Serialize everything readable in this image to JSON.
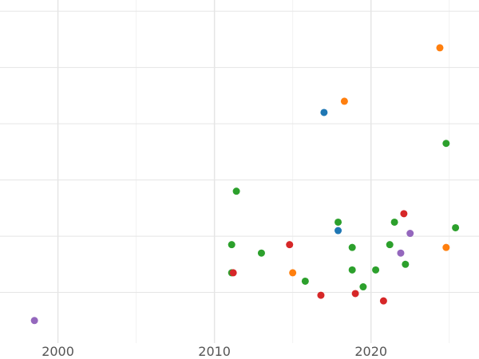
{
  "chart_data": {
    "type": "scatter",
    "title": "",
    "xlabel": "",
    "ylabel": "",
    "xlim": [
      1996.3,
      2026.9
    ],
    "ylim": [
      -0.4,
      5.7
    ],
    "grid": true,
    "x_ticks": [
      2000,
      2010,
      2020
    ],
    "x_tick_labels": [
      "2000",
      "2010",
      "2020"
    ],
    "y_grid_values": [
      0.5,
      1.5,
      2.5,
      3.5,
      4.5,
      5.5
    ],
    "series": [
      {
        "color": "#1f77b4",
        "points": [
          {
            "x": 2017.0,
            "y": 3.7
          },
          {
            "x": 2017.9,
            "y": 1.6
          }
        ]
      },
      {
        "color": "#ff7f0e",
        "points": [
          {
            "x": 2024.4,
            "y": 4.85
          },
          {
            "x": 2018.3,
            "y": 3.9
          },
          {
            "x": 2015.0,
            "y": 0.85
          },
          {
            "x": 2024.8,
            "y": 1.3
          }
        ]
      },
      {
        "color": "#2ca02c",
        "points": [
          {
            "x": 2024.8,
            "y": 3.15
          },
          {
            "x": 2011.4,
            "y": 2.3
          },
          {
            "x": 2017.9,
            "y": 1.75
          },
          {
            "x": 2021.5,
            "y": 1.75
          },
          {
            "x": 2025.4,
            "y": 1.65
          },
          {
            "x": 2011.1,
            "y": 1.35
          },
          {
            "x": 2013.0,
            "y": 1.2
          },
          {
            "x": 2018.8,
            "y": 1.3
          },
          {
            "x": 2021.2,
            "y": 1.35
          },
          {
            "x": 2022.2,
            "y": 1.0
          },
          {
            "x": 2018.8,
            "y": 0.9
          },
          {
            "x": 2020.3,
            "y": 0.9
          },
          {
            "x": 2011.1,
            "y": 0.85
          },
          {
            "x": 2015.8,
            "y": 0.7
          },
          {
            "x": 2019.5,
            "y": 0.6
          }
        ]
      },
      {
        "color": "#d62728",
        "points": [
          {
            "x": 2022.1,
            "y": 1.9
          },
          {
            "x": 2014.8,
            "y": 1.35
          },
          {
            "x": 2011.2,
            "y": 0.85
          },
          {
            "x": 2016.8,
            "y": 0.45
          },
          {
            "x": 2019.0,
            "y": 0.48
          },
          {
            "x": 2020.8,
            "y": 0.35
          }
        ]
      },
      {
        "color": "#9467bd",
        "points": [
          {
            "x": 2022.5,
            "y": 1.55
          },
          {
            "x": 2021.9,
            "y": 1.2
          },
          {
            "x": 1998.5,
            "y": 0.0
          }
        ]
      }
    ]
  }
}
